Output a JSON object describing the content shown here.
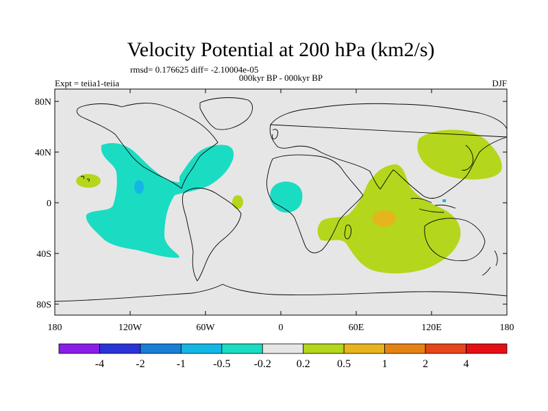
{
  "title": "Velocity Potential at 200 hPa (km2/s)",
  "stats": "rmsd= 0.176625 diff= -2.10004e-05",
  "period": "000kyr BP - 000kyr BP",
  "expt": "Expt = teiia1-teiia",
  "season": "DJF",
  "lat_ticks": [
    "80N",
    "40N",
    "0",
    "40S",
    "80S"
  ],
  "lon_ticks": [
    "180",
    "120W",
    "60W",
    "0",
    "60E",
    "120E",
    "180"
  ],
  "colorbar": {
    "colors": [
      "#8a1de6",
      "#2a33d8",
      "#1a7ed6",
      "#14b6e6",
      "#1adcc2",
      "#e6e6e6",
      "#b4d61c",
      "#e6b41c",
      "#e68214",
      "#e6461a",
      "#e60f14"
    ],
    "labels": [
      "-4",
      "-2",
      "-1",
      "-0.5",
      "-0.2",
      "0.2",
      "0.5",
      "1",
      "2",
      "4"
    ]
  },
  "colors": {
    "background_map": "#e6e6e6",
    "neg_weak": "#1adcc2",
    "neg_mid": "#14b6e6",
    "pos_weak": "#b4d61c",
    "pos_mid": "#e6b41c"
  }
}
